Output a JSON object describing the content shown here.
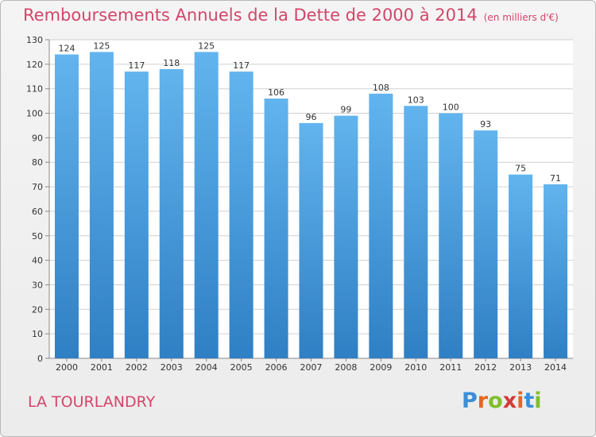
{
  "title": "Remboursements Annuels de la Dette de 2000 à 2014",
  "unit_note": "(en milliers d'€)",
  "commune": "LA TOURLANDRY",
  "logo": {
    "letters": [
      "P",
      "r",
      "o",
      "x",
      "i",
      "t",
      "i"
    ],
    "colors": [
      "#3a8fd6",
      "#e8661f",
      "#7fbf2a",
      "#d23a3a",
      "#e8661f",
      "#3a8fd6",
      "#7fbf2a"
    ]
  },
  "colors": {
    "bar_top": "#62b4ee",
    "bar_bottom": "#2f7fc4",
    "grid": "#d0d0d0",
    "title": "#d2466a"
  },
  "chart_data": {
    "type": "bar",
    "title": "Remboursements Annuels de la Dette de 2000 à 2014",
    "xlabel": "",
    "ylabel": "",
    "categories": [
      "2000",
      "2001",
      "2002",
      "2003",
      "2004",
      "2005",
      "2006",
      "2007",
      "2008",
      "2009",
      "2010",
      "2011",
      "2012",
      "2013",
      "2014"
    ],
    "values": [
      124,
      125,
      117,
      118,
      125,
      117,
      106,
      96,
      99,
      108,
      103,
      100,
      93,
      75,
      71
    ],
    "ylim": [
      0,
      130
    ],
    "yticks": [
      0,
      10,
      20,
      30,
      40,
      50,
      60,
      70,
      80,
      90,
      100,
      110,
      120,
      130
    ],
    "grid": true,
    "legend": "none"
  }
}
